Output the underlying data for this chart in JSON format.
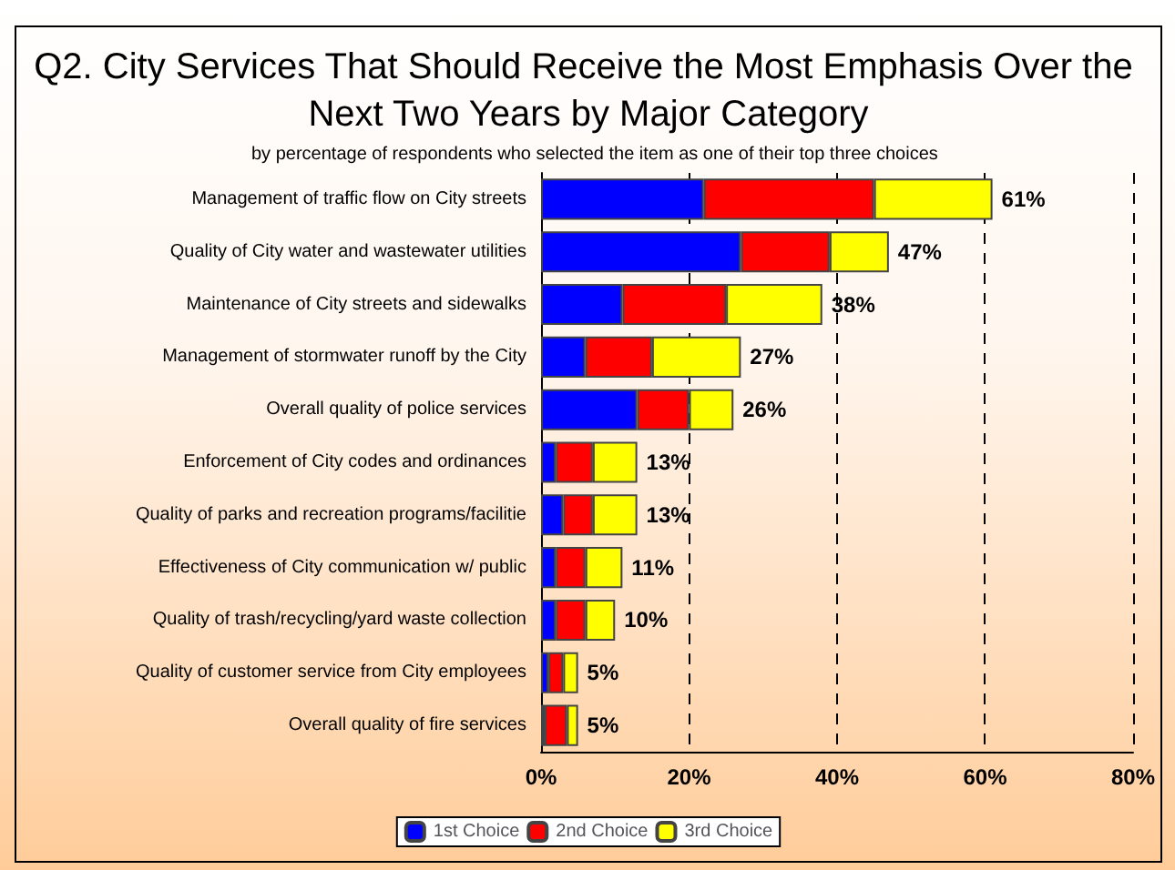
{
  "chart_data": {
    "type": "bar",
    "orientation": "horizontal",
    "stacked": true,
    "title": "Q2. City Services That Should Receive the Most Emphasis Over the Next Two Years by Major Category",
    "subtitle": "by percentage of respondents who selected the item as one of their top three choices",
    "categories": [
      "Management of traffic flow on City streets",
      "Quality of City water and wastewater utilities",
      "Maintenance of City streets and sidewalks",
      "Management of stormwater runoff by the City",
      "Overall quality of police services",
      "Enforcement of City codes and ordinances",
      "Quality of parks and recreation programs/facilitie",
      "Effectiveness of City communication w/ public",
      "Quality of trash/recycling/yard waste collection",
      "Quality of customer service from City employees",
      "Overall quality of fire services"
    ],
    "series": [
      {
        "name": "1st Choice",
        "color": "#0000ff",
        "values": [
          22,
          27,
          11,
          6,
          13,
          2,
          3,
          2,
          2,
          1,
          0.5
        ]
      },
      {
        "name": "2nd Choice",
        "color": "#ff0000",
        "values": [
          23,
          12,
          14,
          9,
          7,
          5,
          4,
          4,
          4,
          2,
          3
        ]
      },
      {
        "name": "3rd Choice",
        "color": "#ffff00",
        "values": [
          16,
          8,
          13,
          12,
          6,
          6,
          6,
          5,
          4,
          2,
          1.5
        ]
      }
    ],
    "totals": [
      "61%",
      "47%",
      "38%",
      "27%",
      "26%",
      "13%",
      "13%",
      "11%",
      "10%",
      "5%",
      "5%"
    ],
    "xlim": [
      0,
      80
    ],
    "xticks": [
      {
        "value": 0,
        "label": "0%"
      },
      {
        "value": 20,
        "label": "20%"
      },
      {
        "value": 40,
        "label": "40%"
      },
      {
        "value": 60,
        "label": "60%"
      },
      {
        "value": 80,
        "label": "80%"
      }
    ],
    "grid": "x",
    "legend": "bottom"
  }
}
